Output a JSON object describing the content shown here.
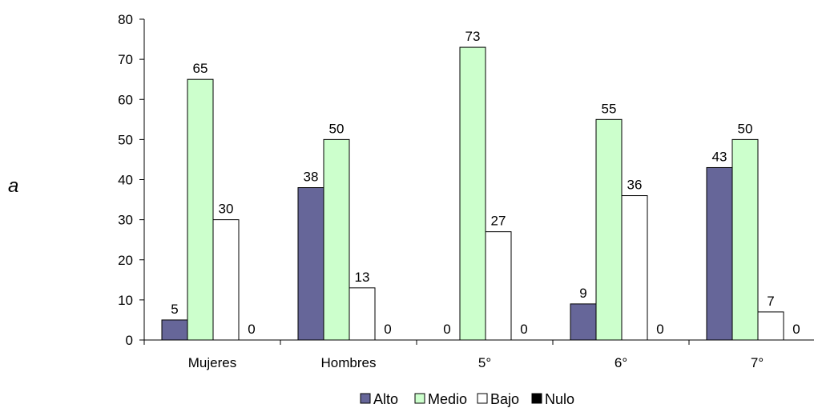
{
  "chart_data": {
    "type": "bar",
    "side_label": "a",
    "categories": [
      "Mujeres",
      "Hombres",
      "5°",
      "6°",
      "7°"
    ],
    "series": [
      {
        "name": "Alto",
        "color": "#666699",
        "values": [
          5,
          38,
          0,
          9,
          43
        ],
        "labels": [
          "5",
          "38",
          "0",
          "9",
          "43"
        ]
      },
      {
        "name": "Medio",
        "color": "#ccffcc",
        "values": [
          65,
          50,
          73,
          55,
          50
        ],
        "labels": [
          "65",
          "50",
          "73",
          "55",
          "50"
        ]
      },
      {
        "name": "Bajo",
        "color": "#ffffff",
        "values": [
          30,
          13,
          27,
          36,
          7
        ],
        "labels": [
          "30",
          "13",
          "27",
          "36",
          "7"
        ]
      },
      {
        "name": "Nulo",
        "color": "#000000",
        "values": [
          0,
          0,
          0,
          0,
          0
        ],
        "labels": [
          "0",
          "0",
          "0",
          "0",
          "0"
        ]
      }
    ],
    "ylim": [
      0,
      80
    ],
    "yticks": [
      0,
      10,
      20,
      30,
      40,
      50,
      60,
      70,
      80
    ],
    "grid": false,
    "legend_position": "bottom"
  }
}
